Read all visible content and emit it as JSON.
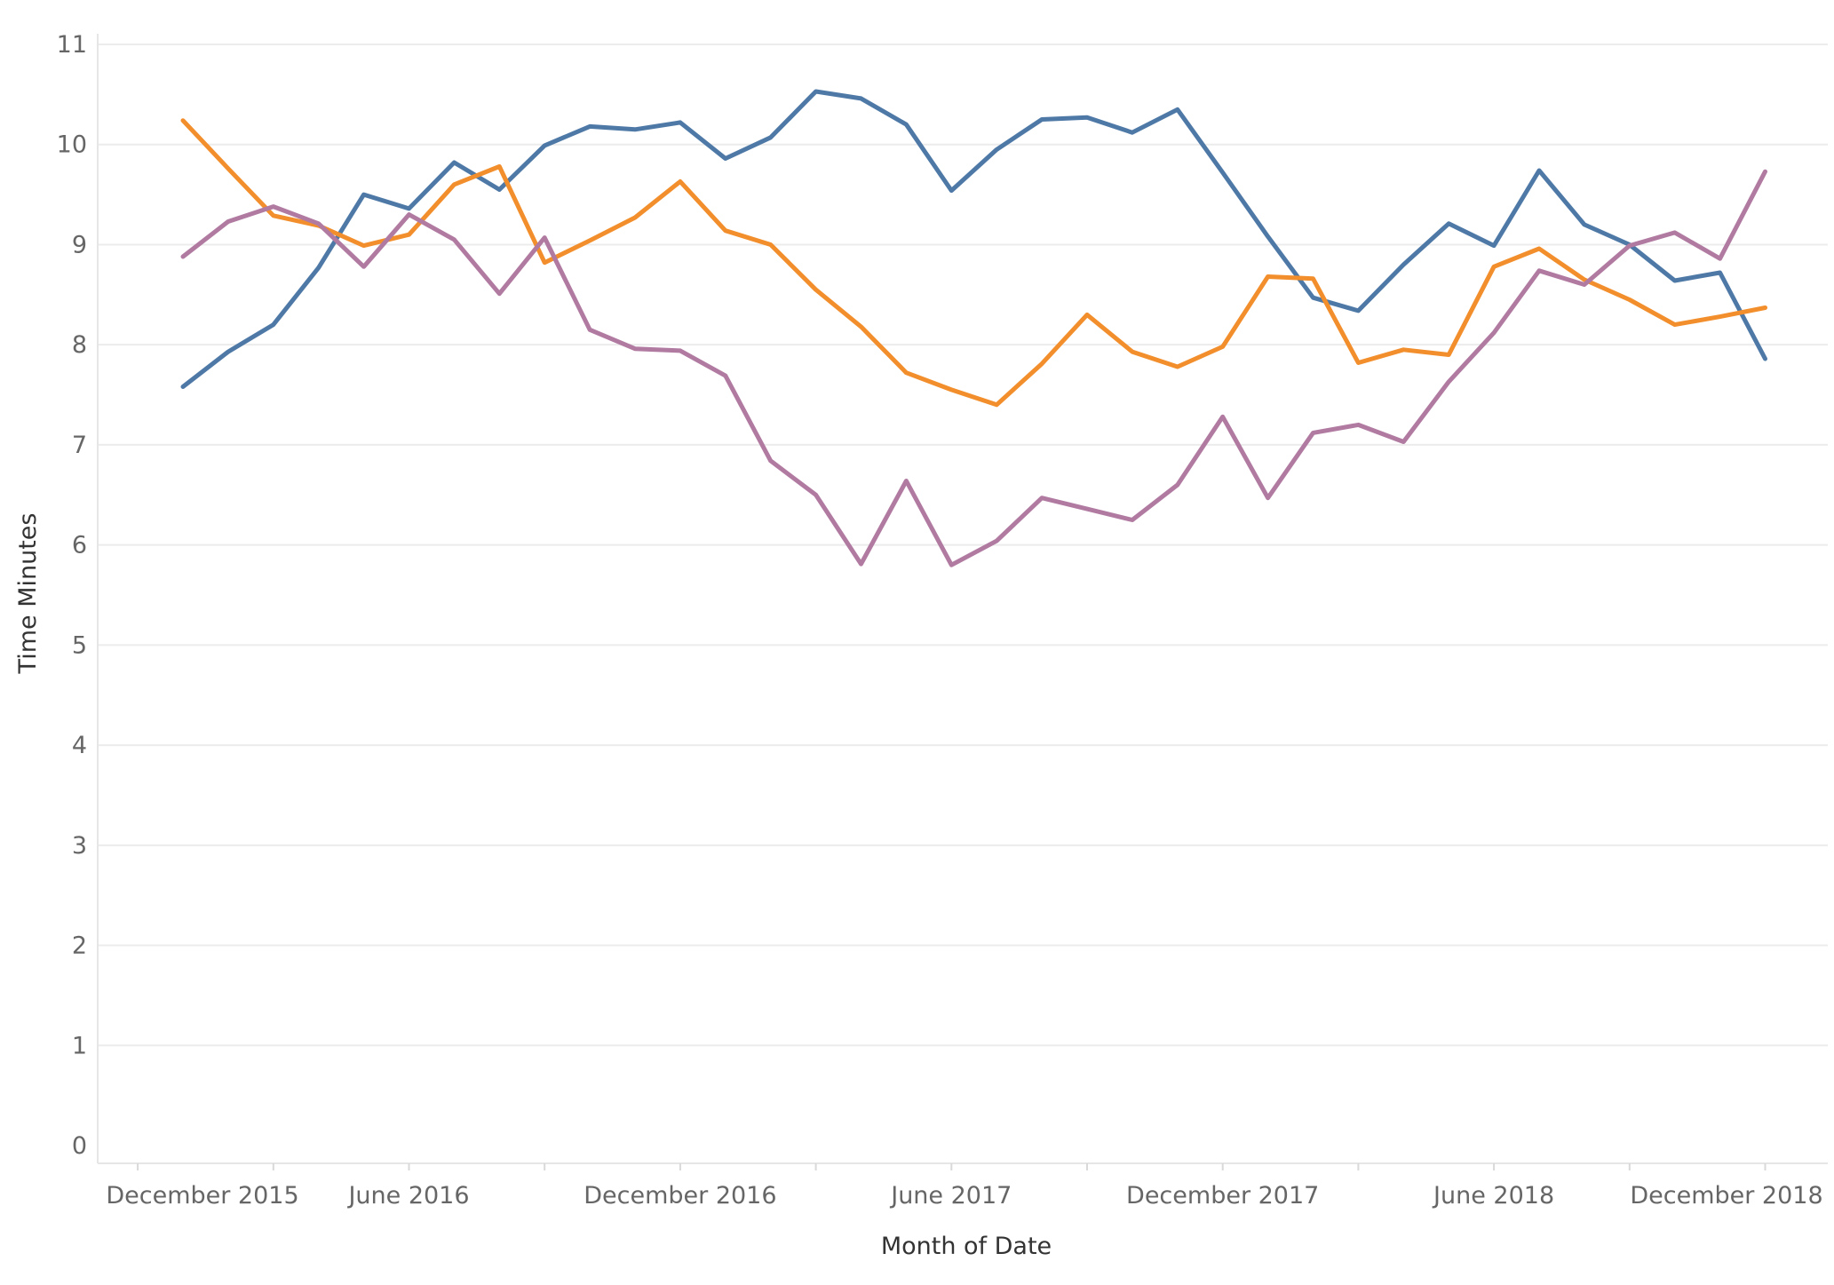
{
  "chart_data": {
    "type": "line",
    "xlabel": "Month of Date",
    "ylabel": "Time Minutes",
    "ylim": [
      0,
      11
    ],
    "yticks": [
      0,
      1,
      2,
      3,
      4,
      5,
      6,
      7,
      8,
      9,
      10,
      11
    ],
    "grid": true,
    "legend": "none",
    "x_ticks": [
      {
        "label": "December 2015",
        "month_index": 1
      },
      {
        "label": "June 2016",
        "month_index": 7
      },
      {
        "label": "December 2016",
        "month_index": 13
      },
      {
        "label": "June 2017",
        "month_index": 19
      },
      {
        "label": "December 2017",
        "month_index": 25
      },
      {
        "label": "June 2018",
        "month_index": 31
      },
      {
        "label": "December 2018",
        "month_index": 37
      }
    ],
    "x_range": [
      "2015-11",
      "2019-01"
    ],
    "x": [
      "2016-01",
      "2016-02",
      "2016-03",
      "2016-04",
      "2016-05",
      "2016-06",
      "2016-07",
      "2016-08",
      "2016-09",
      "2016-10",
      "2016-11",
      "2016-12",
      "2017-01",
      "2017-02",
      "2017-03",
      "2017-04",
      "2017-05",
      "2017-06",
      "2017-07",
      "2017-08",
      "2017-09",
      "2017-10",
      "2017-11",
      "2017-12",
      "2018-01",
      "2018-02",
      "2018-03",
      "2018-04",
      "2018-05",
      "2018-06",
      "2018-07",
      "2018-08",
      "2018-09",
      "2018-10",
      "2018-11",
      "2018-12"
    ],
    "series": [
      {
        "color": "#4e79a7",
        "values": [
          7.58,
          7.93,
          8.2,
          8.77,
          9.5,
          9.36,
          9.82,
          9.55,
          9.99,
          10.18,
          10.15,
          10.22,
          9.86,
          10.07,
          10.53,
          10.46,
          10.2,
          9.54,
          9.95,
          10.25,
          10.27,
          10.12,
          10.35,
          9.72,
          9.08,
          8.47,
          8.34,
          8.8,
          9.21,
          8.99,
          9.74,
          9.2,
          9.0,
          8.64,
          8.72,
          7.86
        ]
      },
      {
        "color": "#f28e2b",
        "values": [
          10.24,
          9.76,
          9.29,
          9.19,
          8.99,
          9.1,
          9.6,
          9.78,
          8.82,
          9.04,
          9.27,
          9.63,
          9.14,
          9.0,
          8.55,
          8.18,
          7.72,
          7.55,
          7.4,
          7.81,
          8.3,
          7.93,
          7.78,
          7.98,
          8.68,
          8.66,
          7.82,
          7.95,
          7.9,
          8.78,
          8.96,
          8.65,
          8.45,
          8.2,
          8.28,
          8.37
        ]
      },
      {
        "color": "#b07aa1",
        "values": [
          8.88,
          9.23,
          9.38,
          9.21,
          8.78,
          9.3,
          9.05,
          8.51,
          9.07,
          8.15,
          7.96,
          7.94,
          7.69,
          6.84,
          6.5,
          5.81,
          6.64,
          5.8,
          6.04,
          6.47,
          6.36,
          6.25,
          6.6,
          7.28,
          6.47,
          7.12,
          7.2,
          7.03,
          7.63,
          8.12,
          8.74,
          8.6,
          8.99,
          9.12,
          8.86,
          9.73
        ]
      }
    ]
  }
}
